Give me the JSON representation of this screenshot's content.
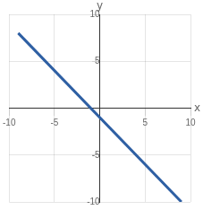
{
  "chart_data": {
    "type": "line",
    "x": [
      -9,
      9
    ],
    "values": [
      8,
      -10
    ],
    "color": "#2e5fa3",
    "marker": "none",
    "xlabel": "x",
    "ylabel": "y",
    "xlim": [
      -10,
      10
    ],
    "ylim": [
      -10,
      10
    ],
    "xticks": [
      -10,
      -5,
      5,
      10
    ],
    "yticks": [
      -10,
      -5,
      5,
      10
    ],
    "grid": true
  }
}
